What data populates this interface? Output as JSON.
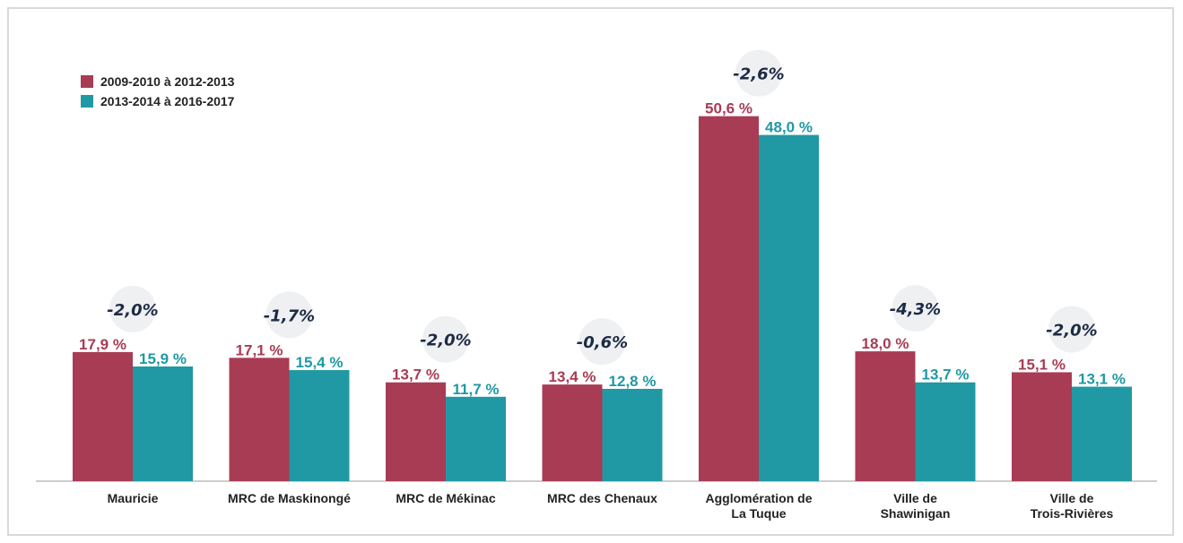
{
  "colors": {
    "series_1": "#a83c54",
    "series_2": "#2099a4",
    "bubble": "#eff0f2",
    "change_text": "#1e2b45",
    "axis": "#999999",
    "category_text": "#222222"
  },
  "chart_data": {
    "type": "bar",
    "title": "",
    "xlabel": "",
    "ylabel": "",
    "ylim": [
      0,
      55
    ],
    "grid": false,
    "legend_position": "top-left",
    "categories": [
      [
        "Mauricie"
      ],
      [
        "MRC de Maskinongé"
      ],
      [
        "MRC de Mékinac"
      ],
      [
        "MRC des Chenaux"
      ],
      [
        "Agglomération de",
        "La Tuque"
      ],
      [
        "Ville de",
        "Shawinigan"
      ],
      [
        "Ville de",
        "Trois-Rivières"
      ]
    ],
    "series": [
      {
        "name": "2009-2010 à 2012-2013",
        "values": [
          17.9,
          17.1,
          13.7,
          13.4,
          50.6,
          18.0,
          15.1
        ],
        "labels": [
          "17,9 %",
          "17,1 %",
          "13,7 %",
          "13,4 %",
          "50,6 %",
          "18,0 %",
          "15,1 %"
        ]
      },
      {
        "name": "2013-2014 à 2016-2017",
        "values": [
          15.9,
          15.4,
          11.7,
          12.8,
          48.0,
          13.7,
          13.1
        ],
        "labels": [
          "15,9 %",
          "15,4 %",
          "11,7 %",
          "12,8 %",
          "48,0 %",
          "13,7 %",
          "13,1 %"
        ]
      }
    ],
    "change_labels": [
      "-2,0%",
      "-1,7%",
      "-2,0%",
      "-0,6%",
      "-2,6%",
      "-4,3%",
      "-2,0%"
    ]
  }
}
